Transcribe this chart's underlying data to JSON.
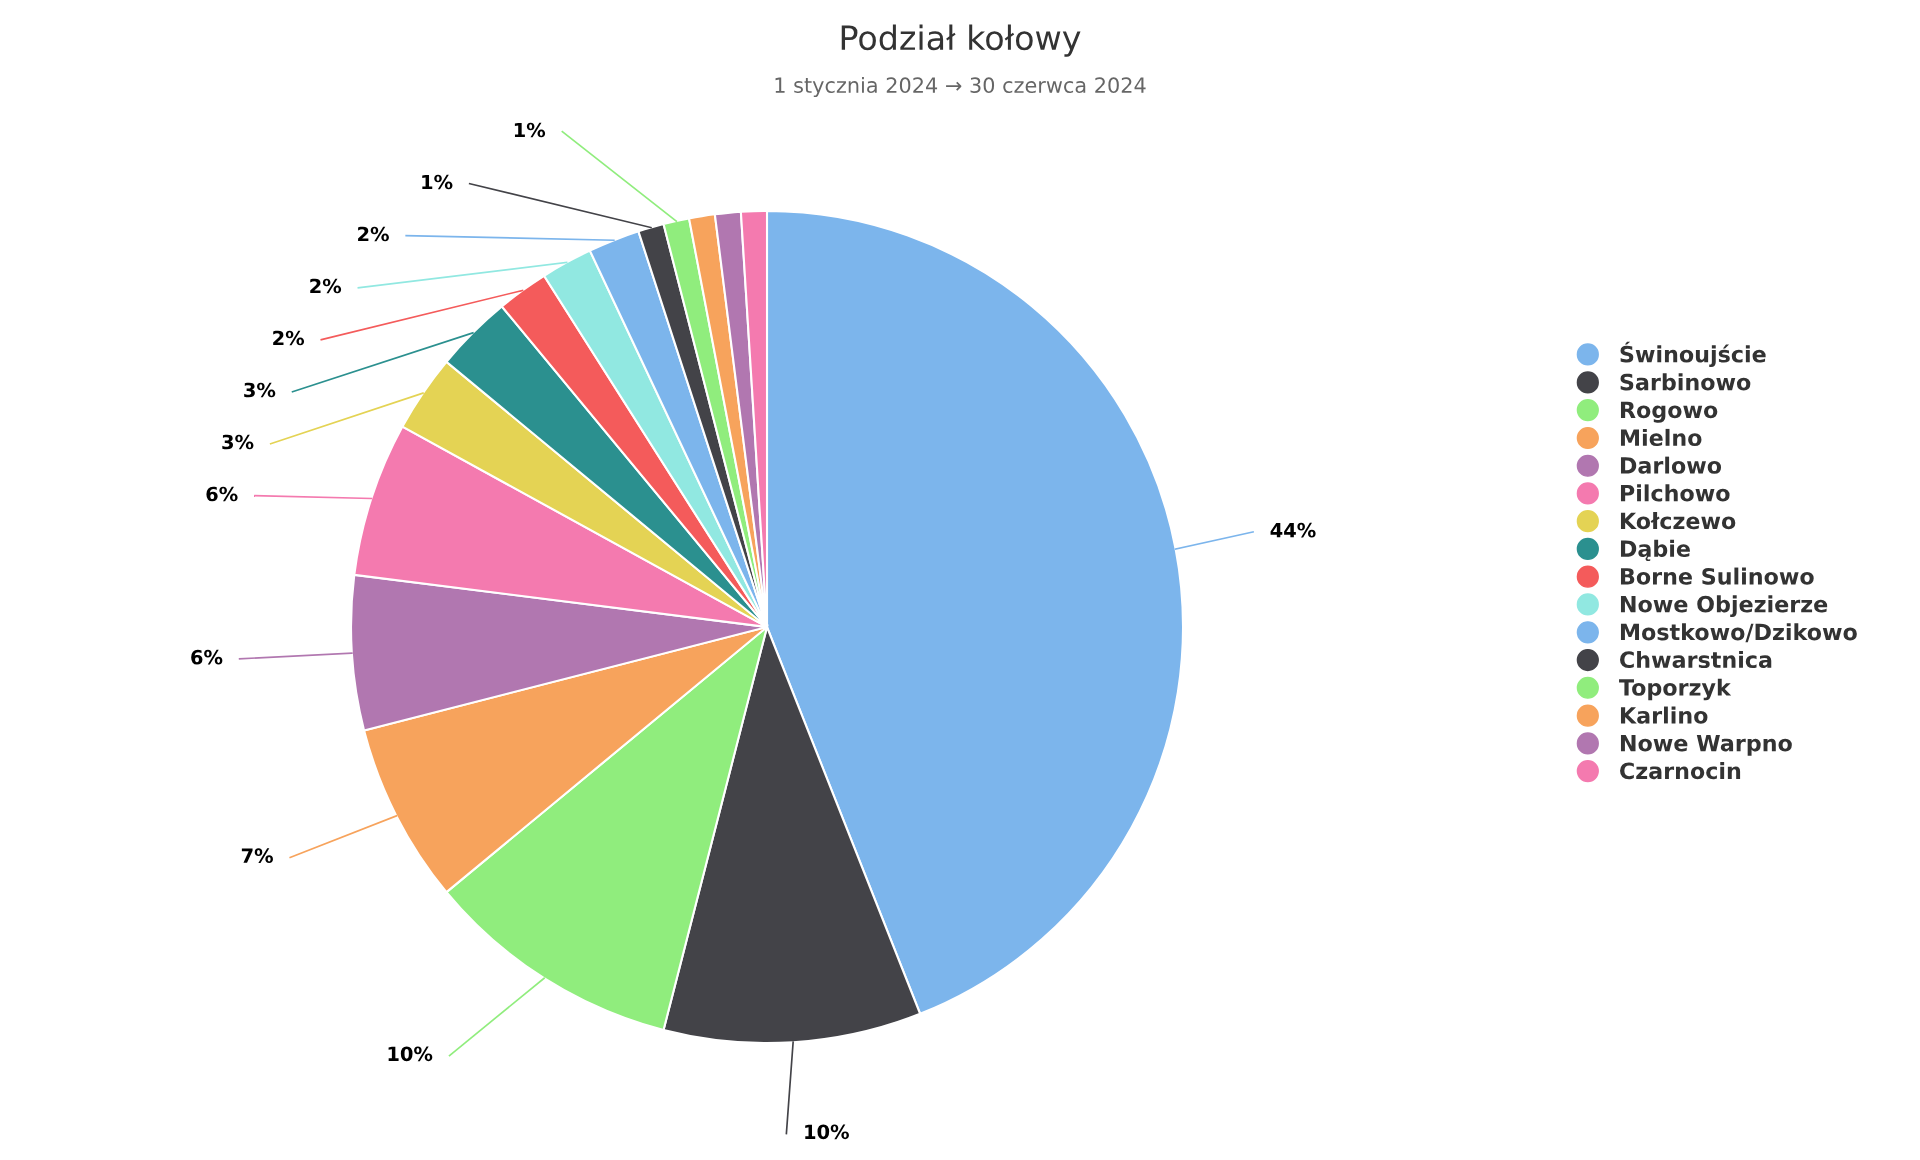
{
  "chart_data": {
    "type": "pie",
    "title": "Podział kołowy",
    "subtitle": "1 stycznia 2024 → 30 czerwca 2024",
    "categories": [
      "Świnoujście",
      "Sarbinowo",
      "Rogowo",
      "Mielno",
      "Darlowo",
      "Pilchowo",
      "Kołczewo",
      "Dąbie",
      "Borne Sulinowo",
      "Nowe Objezierze",
      "Mostkowo/Dzikowo",
      "Chwarstnica",
      "Toporzyk",
      "Karlino",
      "Nowe Warpno",
      "Czarnocin"
    ],
    "values": [
      44,
      10,
      10,
      7,
      6,
      6,
      3,
      3,
      2,
      2,
      2,
      1,
      1,
      1,
      1,
      1
    ],
    "value_labels": [
      "44%",
      "10%",
      "10%",
      "7%",
      "6%",
      "6%",
      "3%",
      "3%",
      "2%",
      "2%",
      "2%",
      "1%",
      "1%",
      null,
      null,
      null
    ],
    "colors": [
      "#7cb5ec",
      "#434348",
      "#90ed7d",
      "#f7a35c",
      "#b177b0",
      "#f47aaf",
      "#e4d354",
      "#2b908f",
      "#f45b5b",
      "#91e8e1",
      "#7cb5ec",
      "#434348",
      "#90ed7d",
      "#f7a35c",
      "#b177b0",
      "#f47aaf"
    ],
    "legend": "right"
  }
}
